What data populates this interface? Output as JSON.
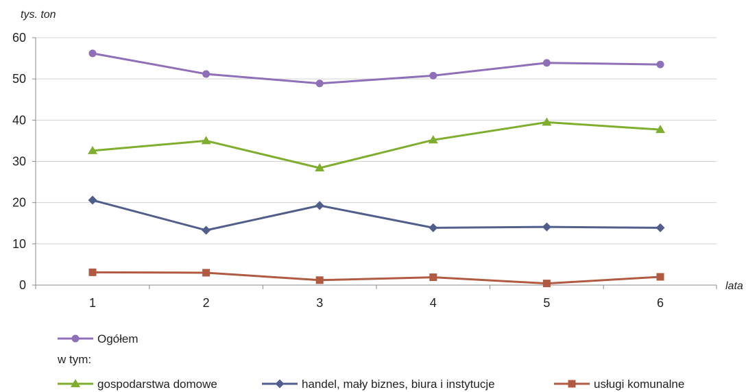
{
  "chart_data": {
    "type": "line",
    "ylabel": "tys. ton",
    "xlabel": "lata",
    "ylim": [
      0,
      60
    ],
    "yticks": [
      0,
      10,
      20,
      30,
      40,
      50,
      60
    ],
    "categories": [
      "1",
      "2",
      "3",
      "4",
      "5",
      "6"
    ],
    "grid": "horizontal",
    "legend_placement": "bottom",
    "legend_subheading": "w tym:",
    "series": [
      {
        "name": "Ogółem",
        "values": [
          56.2,
          51.2,
          48.9,
          50.8,
          53.9,
          53.5
        ],
        "color": "#8f6fb8",
        "marker": "circle"
      },
      {
        "name": "gospodarstwa domowe",
        "values": [
          32.6,
          35.0,
          28.4,
          35.2,
          39.5,
          37.7
        ],
        "color": "#7fad2e",
        "marker": "triangle"
      },
      {
        "name": "handel, mały biznes, biura i instytucje",
        "values": [
          20.6,
          13.3,
          19.3,
          13.9,
          14.1,
          13.9
        ],
        "color": "#4f5e8a",
        "marker": "diamond"
      },
      {
        "name": "usługi komunalne",
        "values": [
          3.1,
          3.0,
          1.2,
          1.9,
          0.4,
          2.0
        ],
        "color": "#b15a42",
        "marker": "square"
      }
    ]
  }
}
